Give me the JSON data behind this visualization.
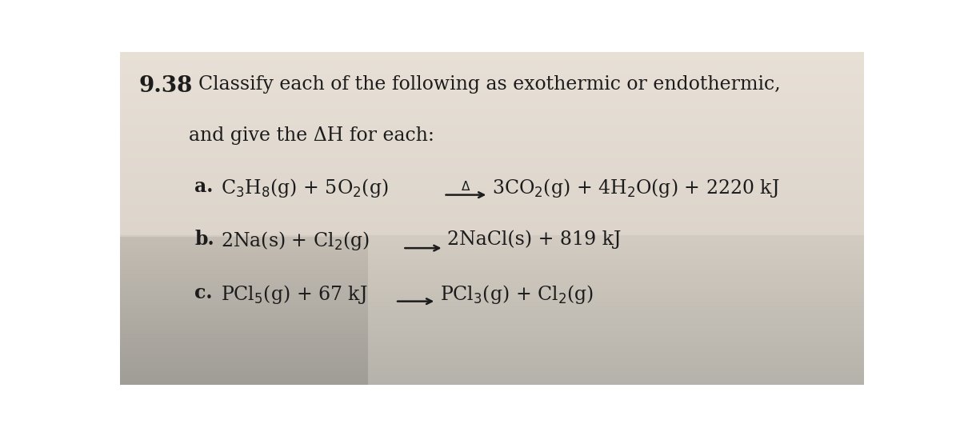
{
  "bg_top_color": "#e8e2da",
  "bg_bottom_left": "#c0b8b0",
  "bg_bottom_right": "#cec8c0",
  "text_color": "#1c1c1c",
  "title_number": "9.38",
  "title_line1": "Classify each of the following as exothermic or endothermic,",
  "title_line2": "and give the ΔH for each:",
  "label_a": "a.",
  "label_b": "b.",
  "label_c": "c.",
  "react_a_left": "C$_3$H$_8$(g) + 5O$_2$(g)",
  "react_a_right": "3CO$_2$(g) + 4H$_2$O(g) + 2220 kJ",
  "react_b_left": "2Na(s) + Cl$_2$(g)",
  "react_b_right": "2NaCl(s) + 819 kJ",
  "react_c_left": "PCl$_5$(g) + 67 kJ",
  "react_c_right": "PCl$_3$(g) + Cl$_2$(g)",
  "font_size_num": 20,
  "font_size_title": 17,
  "font_size_react": 17
}
